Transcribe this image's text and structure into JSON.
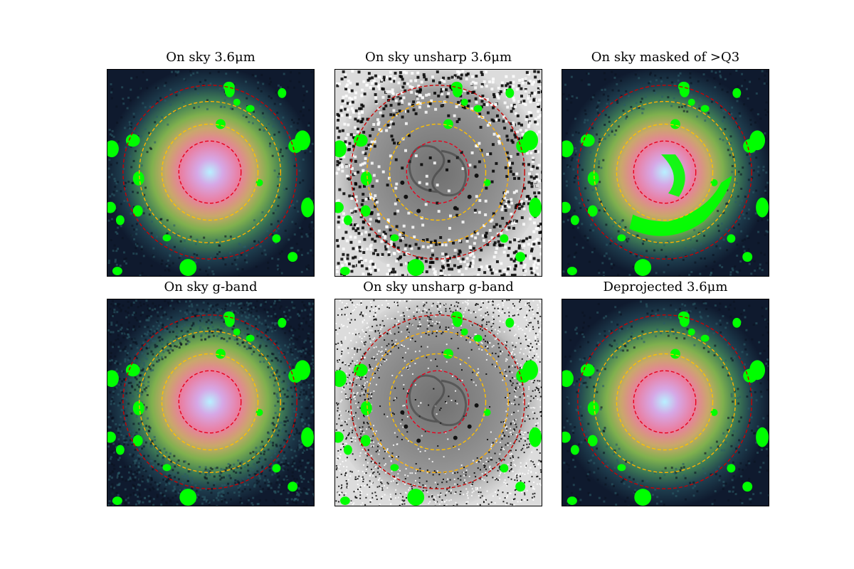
{
  "figure": {
    "panels": [
      {
        "id": "p1",
        "title": "On sky 3.6μm",
        "style": "color"
      },
      {
        "id": "p2",
        "title": "On sky unsharp 3.6μm",
        "style": "gray"
      },
      {
        "id": "p3",
        "title": "On sky masked of >Q3",
        "style": "color-masked"
      },
      {
        "id": "p4",
        "title": "On sky g-band",
        "style": "color-noisy"
      },
      {
        "id": "p5",
        "title": "On sky unsharp g-band",
        "style": "gray-noisy"
      },
      {
        "id": "p6",
        "title": "Deprojected 3.6μm",
        "style": "color"
      }
    ],
    "colors": {
      "mask": "#00ff00",
      "ring_inner": "#e8001c",
      "ring_middle_a": "#ffc000",
      "ring_middle_b": "#ffb000",
      "ring_outer": "#cc0000",
      "background_dark": "#0f1a2e",
      "galaxy_core": "#b8f0ff",
      "galaxy_pink": "#ea7da0"
    }
  }
}
